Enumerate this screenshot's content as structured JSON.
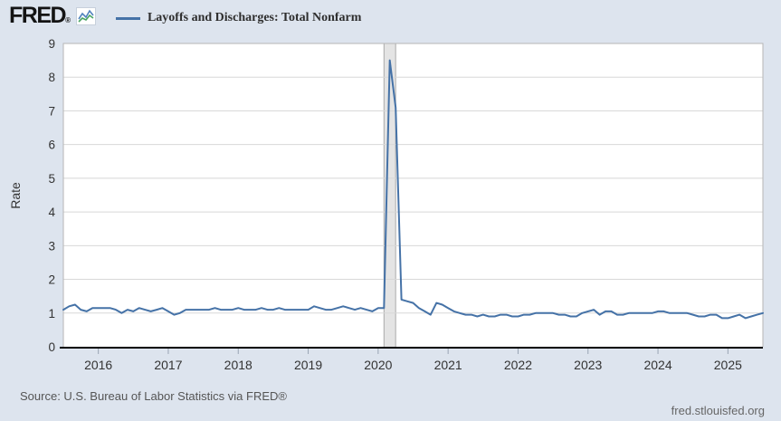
{
  "header": {
    "logo": "FRED",
    "registered": "®",
    "legend_label": "Layoffs and Discharges: Total Nonfarm"
  },
  "footer": {
    "source": "Source: U.S. Bureau of Labor Statistics via FRED®",
    "site": "fred.stlouisfed.org"
  },
  "colors": {
    "background": "#dde4ee",
    "plot_background": "#ffffff",
    "line": "#4572a7",
    "gridline": "#d8d8d8",
    "plot_border": "#b6b6b6",
    "recession_band_fill": "#e4e4e4",
    "recession_band_edge": "#a9a9a9",
    "axis_line": "#000000",
    "tick_mark": "#99a4b3",
    "tick_text": "#333333",
    "source_text": "#555555"
  },
  "chart_data": {
    "type": "line",
    "title": "Layoffs and Discharges: Total Nonfarm",
    "ylabel": "Rate",
    "xlabel": "",
    "ylim": [
      0,
      9
    ],
    "yticks": [
      0,
      1,
      2,
      3,
      4,
      5,
      6,
      7,
      8,
      9
    ],
    "x_tick_labels": [
      "2016",
      "2017",
      "2018",
      "2019",
      "2020",
      "2021",
      "2022",
      "2023",
      "2024",
      "2025"
    ],
    "x_start": "2015-07",
    "x_end": "2025-07",
    "frequency": "monthly",
    "grid": "horizontal",
    "legend_position": "top-left",
    "recession_band": {
      "from": "2020-02",
      "to": "2020-04"
    },
    "peak": {
      "date": "2020-03",
      "value": 8.5
    },
    "series": [
      {
        "name": "Layoffs and Discharges: Total Nonfarm",
        "color": "#4572a7",
        "values": [
          1.1,
          1.2,
          1.25,
          1.1,
          1.05,
          1.15,
          1.15,
          1.15,
          1.15,
          1.1,
          1.0,
          1.1,
          1.05,
          1.15,
          1.1,
          1.05,
          1.1,
          1.15,
          1.05,
          0.95,
          1.0,
          1.1,
          1.1,
          1.1,
          1.1,
          1.1,
          1.15,
          1.1,
          1.1,
          1.1,
          1.15,
          1.1,
          1.1,
          1.1,
          1.15,
          1.1,
          1.1,
          1.15,
          1.1,
          1.1,
          1.1,
          1.1,
          1.1,
          1.2,
          1.15,
          1.1,
          1.1,
          1.15,
          1.2,
          1.15,
          1.1,
          1.15,
          1.1,
          1.05,
          1.15,
          1.15,
          8.5,
          7.1,
          1.4,
          1.35,
          1.3,
          1.15,
          1.05,
          0.95,
          1.3,
          1.25,
          1.15,
          1.05,
          1.0,
          0.95,
          0.95,
          0.9,
          0.95,
          0.9,
          0.9,
          0.95,
          0.95,
          0.9,
          0.9,
          0.95,
          0.95,
          1.0,
          1.0,
          1.0,
          1.0,
          0.95,
          0.95,
          0.9,
          0.9,
          1.0,
          1.05,
          1.1,
          0.95,
          1.05,
          1.05,
          0.95,
          0.95,
          1.0,
          1.0,
          1.0,
          1.0,
          1.0,
          1.05,
          1.05,
          1.0,
          1.0,
          1.0,
          1.0,
          0.95,
          0.9,
          0.9,
          0.95,
          0.95,
          0.85,
          0.85,
          0.9,
          0.95,
          0.85,
          0.9,
          0.95,
          1.0
        ]
      }
    ]
  }
}
